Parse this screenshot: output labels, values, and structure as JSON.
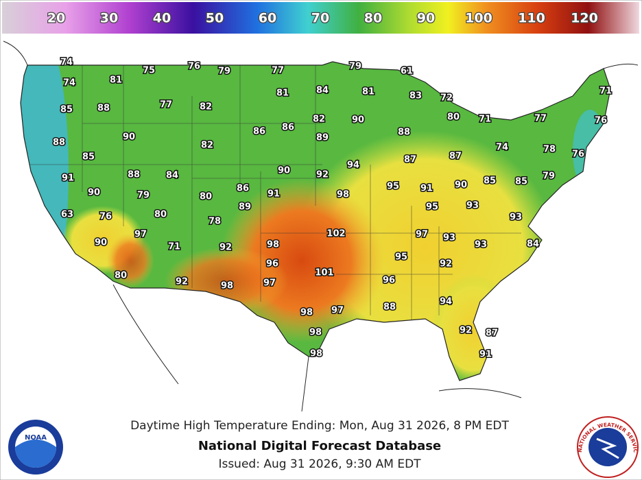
{
  "scale": {
    "labels": [
      20,
      30,
      40,
      50,
      60,
      70,
      80,
      90,
      100,
      110,
      120
    ]
  },
  "map": {
    "labels": [
      74,
      74,
      81,
      75,
      76,
      79,
      77,
      79,
      61,
      85,
      88,
      77,
      82,
      81,
      84,
      81,
      83,
      72,
      71,
      88,
      90,
      86,
      86,
      82,
      90,
      89,
      88,
      80,
      71,
      77,
      76,
      85,
      82,
      74,
      78,
      76,
      87,
      87,
      91,
      88,
      84,
      90,
      92,
      94,
      95,
      91,
      90,
      85,
      85,
      79,
      90,
      79,
      80,
      86,
      91,
      98,
      89,
      95,
      93,
      63,
      76,
      80,
      78,
      93,
      90,
      97,
      71,
      92,
      98,
      102,
      97,
      93,
      93,
      84,
      96,
      95,
      92,
      80,
      92,
      98,
      97,
      101,
      96,
      94,
      88,
      98,
      97,
      98,
      92,
      87,
      98,
      91
    ]
  },
  "caption": {
    "line1": "Daytime High Temperature Ending: Mon, Aug 31 2026, 8 PM EDT",
    "title": "National Digital Forecast Database",
    "issued": "Issued: Aug 31 2026, 9:30 AM EDT"
  },
  "logos": {
    "left": "NOAA",
    "right": "NATIONAL WEATHER SERVICE"
  }
}
